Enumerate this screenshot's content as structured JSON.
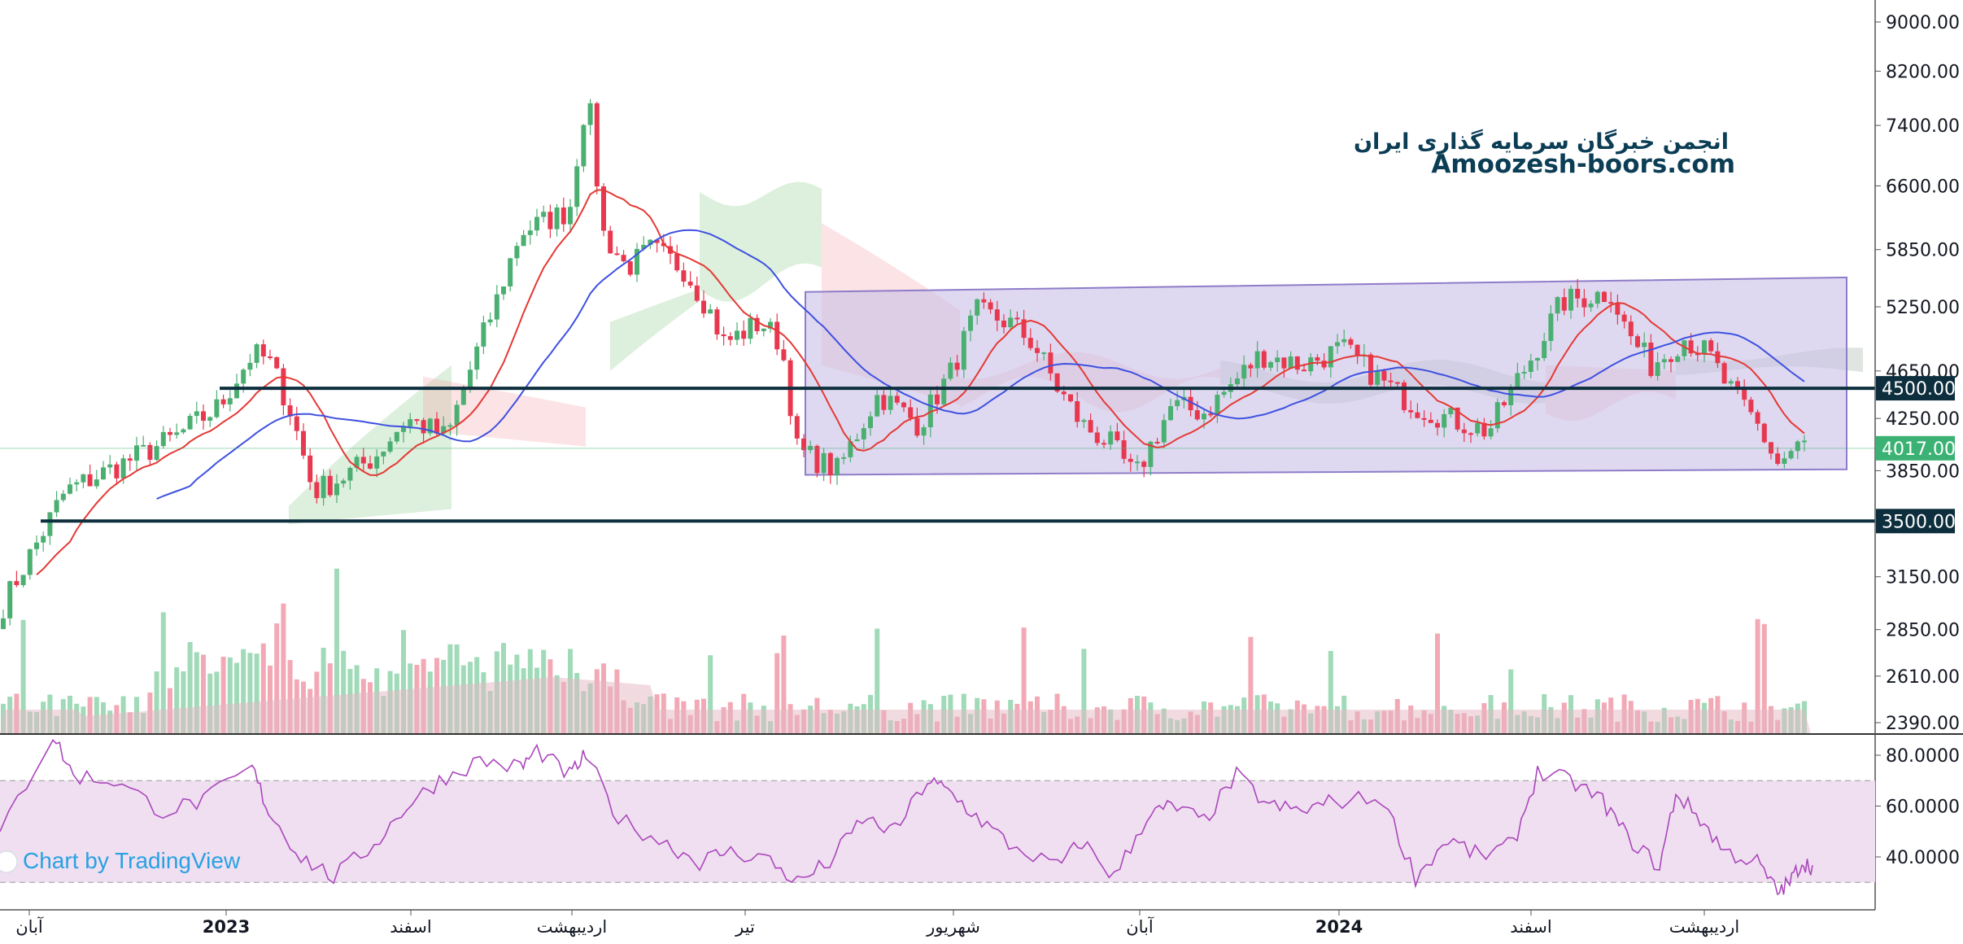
{
  "watermark": {
    "line1": "انجمن خبرگان سرمایه گذاری ایران",
    "line2": "Amoozesh-boors.com"
  },
  "credit": "Chart by TradingView",
  "price_axis": {
    "ticks": [
      "9000.00",
      "8200.00",
      "7400.00",
      "6600.00",
      "5850.00",
      "5250.00",
      "4650.00",
      "4250.00",
      "3850.00",
      "3150.00",
      "2850.00",
      "2610.00",
      "2390.00"
    ]
  },
  "rsi_axis": {
    "ticks": [
      "80.0000",
      "60.0000",
      "40.0000"
    ]
  },
  "time_axis": {
    "labels": [
      "آبان",
      "2023",
      "اسفند",
      "اردیبهشت",
      "تیر",
      "شهریور",
      "آبان",
      "2024",
      "اسفند",
      "اردیبهشت"
    ]
  },
  "levels": [
    {
      "label": "4500.00",
      "value": 4500,
      "color": "#0d2e3d"
    },
    {
      "label": "3500.00",
      "value": 3500,
      "color": "#0d2e3d"
    }
  ],
  "last_price": {
    "label": "4017.00",
    "value": 4017,
    "color": "#3bb273"
  },
  "colors": {
    "up": "#26a69a",
    "up_candle": "#4caf72",
    "down": "#e8384f",
    "ma_fast": "#e53935",
    "ma_slow": "#3f51e0",
    "channel_fill": "#c8c0e6",
    "channel_stroke": "#8f7cc9",
    "rsi_line": "#ab47bc",
    "rsi_band": "#efdff0"
  },
  "chart_data": [
    {
      "type": "candlestick",
      "title": "",
      "ylabel": "",
      "ylim": [
        2300,
        9200
      ],
      "y_scale": "log",
      "x_labels": [
        "آبان",
        "2023",
        "اسفند",
        "اردیبهشت",
        "تیر",
        "شهریور",
        "آبان",
        "2024",
        "اسفند",
        "اردیبهشت"
      ],
      "key_points": [
        {
          "period": "آبان",
          "close": 2900
        },
        {
          "period": "2023",
          "close": 4500
        },
        {
          "period": "اسفند",
          "close": 4150
        },
        {
          "period": "اردیبهشت",
          "close": 7900
        },
        {
          "period": "تیر",
          "close": 4200
        },
        {
          "period": "شهریور",
          "close": 5200
        },
        {
          "period": "آبان",
          "close": 3800
        },
        {
          "period": "2024",
          "close": 4800
        },
        {
          "period": "اسفند",
          "close": 4300
        },
        {
          "period": "اسفند",
          "close": 5450
        },
        {
          "period": "اردیبهشت",
          "close": 4017
        }
      ],
      "horizontal_levels": [
        4500,
        3500
      ],
      "last": 4017,
      "grid": false,
      "overlays": [
        "moving average (red)",
        "moving average (blue)",
        "ichimoku cloud",
        "parallel channel",
        "volume"
      ]
    },
    {
      "type": "line",
      "title": "",
      "ylim": [
        20,
        90
      ],
      "band": [
        30,
        70
      ],
      "x_labels": [
        "آبان",
        "2023",
        "اسفند",
        "اردیبهشت",
        "تیر",
        "شهریور",
        "آبان",
        "2024",
        "اسفند",
        "اردیبهشت"
      ],
      "key_points": [
        {
          "period": "آبان",
          "value": 50
        },
        {
          "period": "2023",
          "value": 78
        },
        {
          "period": "اسفند",
          "value": 32
        },
        {
          "period": "اردیبهشت",
          "value": 80
        },
        {
          "period": "تیر",
          "value": 28
        },
        {
          "period": "شهریور",
          "value": 67
        },
        {
          "period": "آبان",
          "value": 31
        },
        {
          "period": "2024",
          "value": 70
        },
        {
          "period": "اسفند",
          "value": 75
        },
        {
          "period": "اردیبهشت",
          "value": 33
        }
      ]
    }
  ]
}
